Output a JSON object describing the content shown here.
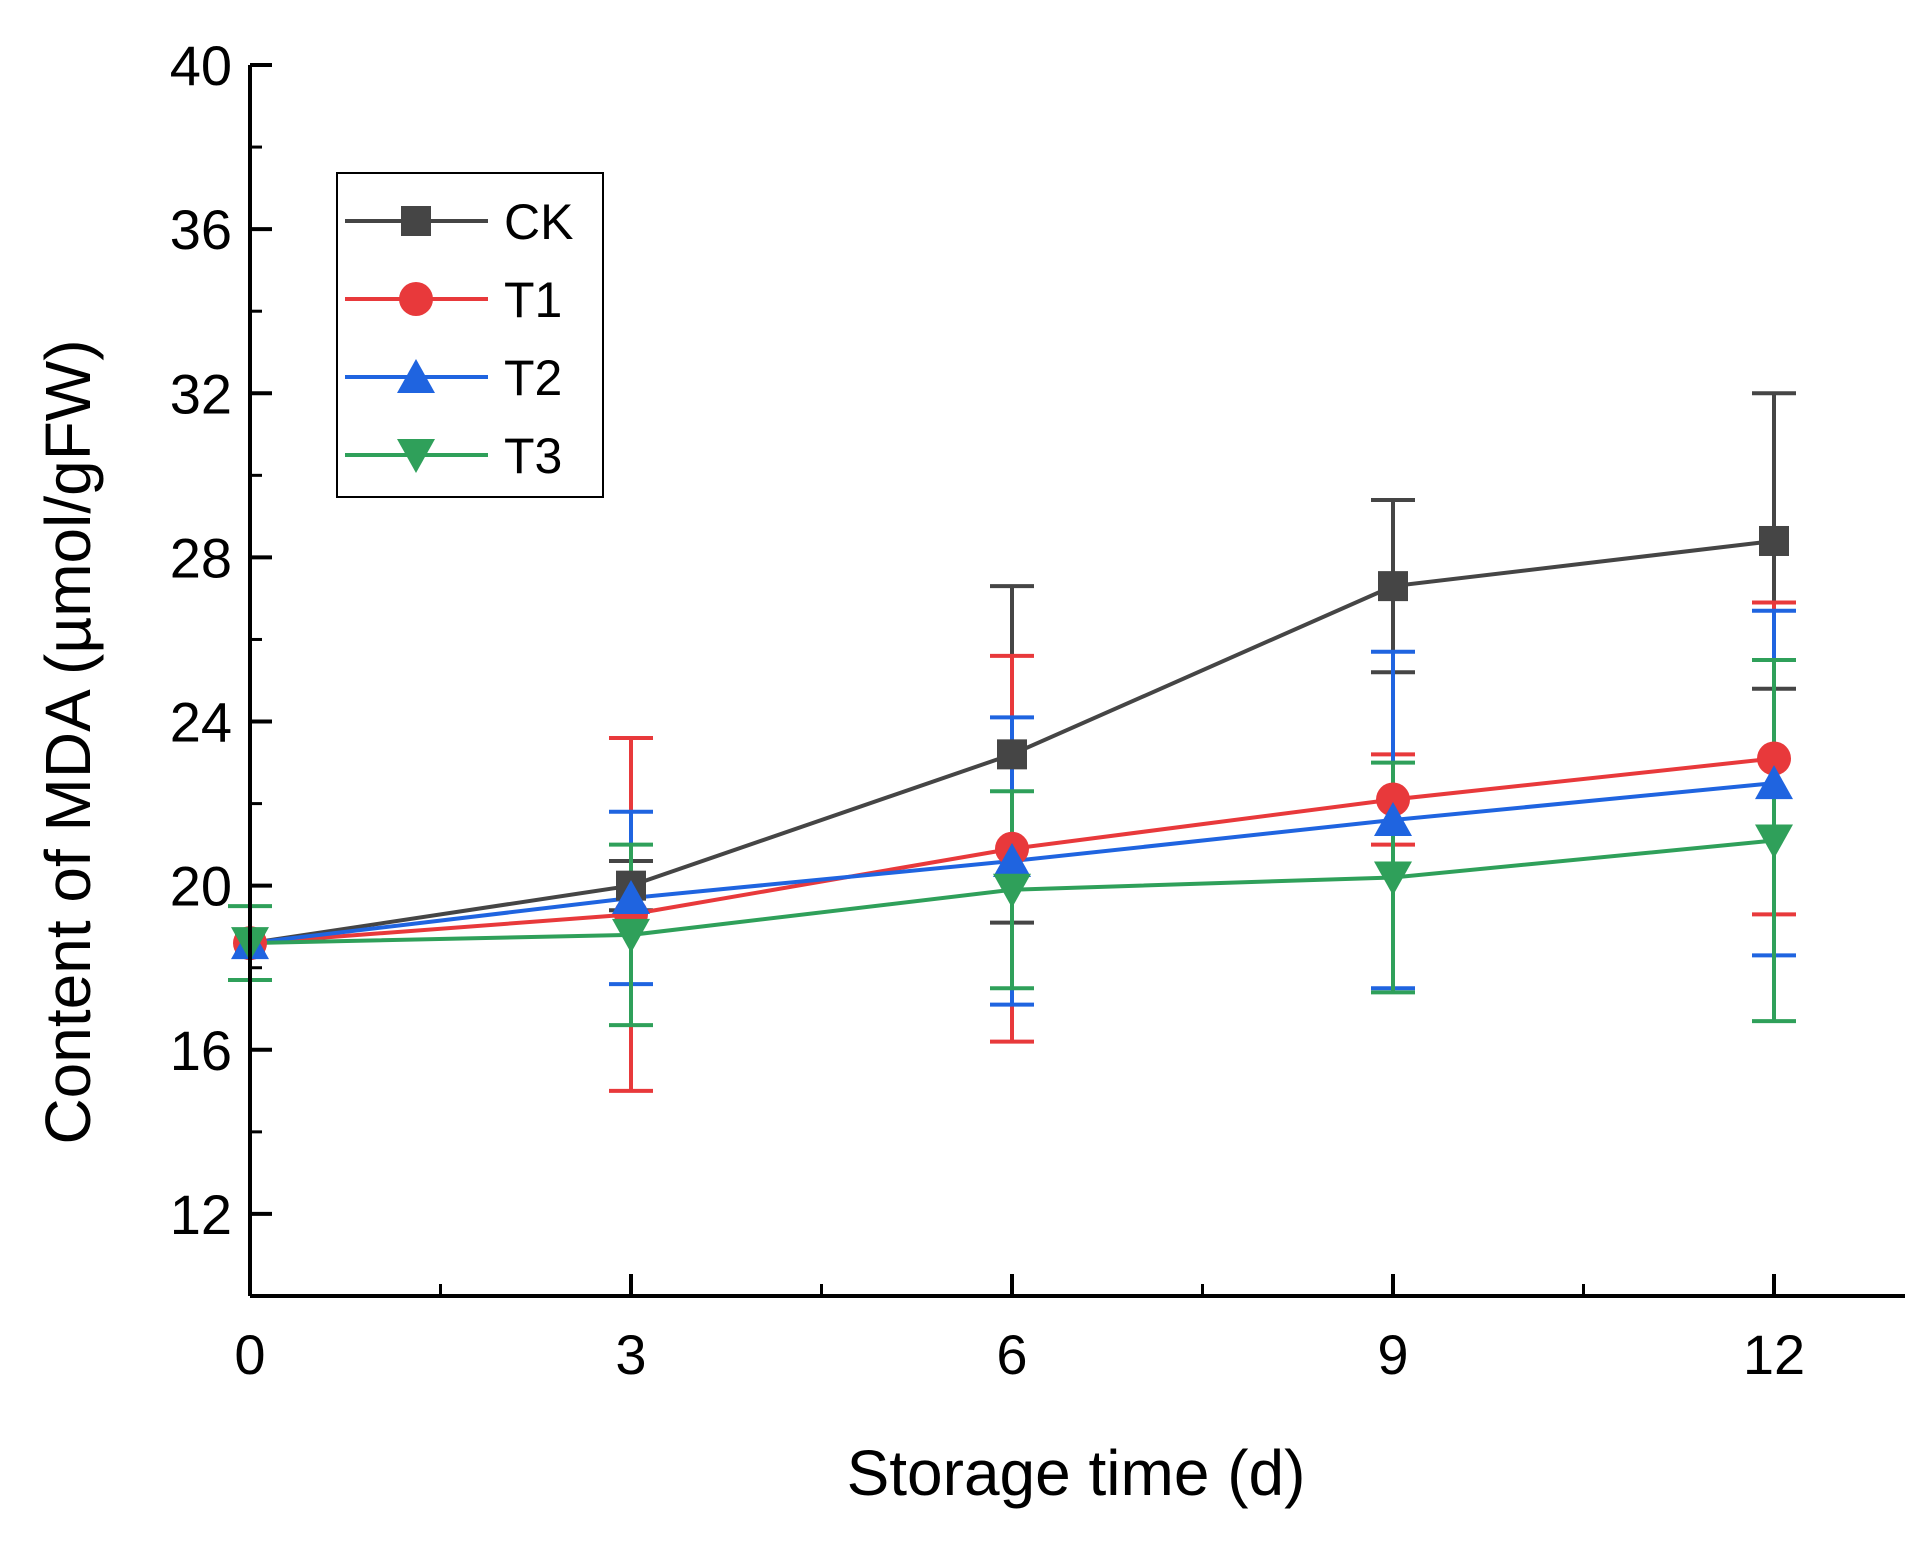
{
  "chart_data": {
    "type": "line",
    "title": "",
    "xlabel": "Storage time (d)",
    "ylabel": "Content of MDA (µmol/gFW)",
    "xlim": [
      0,
      13
    ],
    "ylim": [
      10,
      40
    ],
    "x_ticks": [
      0,
      3,
      6,
      9,
      12
    ],
    "x_tick_labels": [
      "0",
      "3",
      "6",
      "9",
      "12"
    ],
    "y_ticks": [
      12,
      16,
      20,
      24,
      28,
      32,
      36,
      40
    ],
    "y_tick_labels": [
      "12",
      "16",
      "20",
      "24",
      "28",
      "32",
      "36",
      "40"
    ],
    "x_minor_ticks": [
      1.5,
      4.5,
      7.5,
      10.5
    ],
    "y_minor_ticks": [
      14,
      18,
      22,
      26,
      30,
      34,
      38
    ],
    "grid": false,
    "legend_position": "top-left",
    "x": [
      0,
      3,
      6,
      9,
      12
    ],
    "series": [
      {
        "name": "CK",
        "marker": "square",
        "color": "#454545",
        "values": [
          18.6,
          20.0,
          23.2,
          27.3,
          28.4
        ],
        "errors": [
          0.0,
          0.6,
          4.1,
          2.1,
          3.6
        ]
      },
      {
        "name": "T1",
        "marker": "circle",
        "color": "#e8393b",
        "values": [
          18.6,
          19.3,
          20.9,
          22.1,
          23.1
        ],
        "errors": [
          0.0,
          4.3,
          4.7,
          1.1,
          3.8
        ]
      },
      {
        "name": "T2",
        "marker": "triangle-up",
        "color": "#1f64e0",
        "values": [
          18.6,
          19.7,
          20.6,
          21.6,
          22.5
        ],
        "errors": [
          0.0,
          2.1,
          3.5,
          4.1,
          4.2
        ]
      },
      {
        "name": "T3",
        "marker": "triangle-down",
        "color": "#2fa05a",
        "values": [
          18.6,
          18.8,
          19.9,
          20.2,
          21.1
        ],
        "errors": [
          0.9,
          2.2,
          2.4,
          2.8,
          4.4
        ]
      }
    ]
  }
}
